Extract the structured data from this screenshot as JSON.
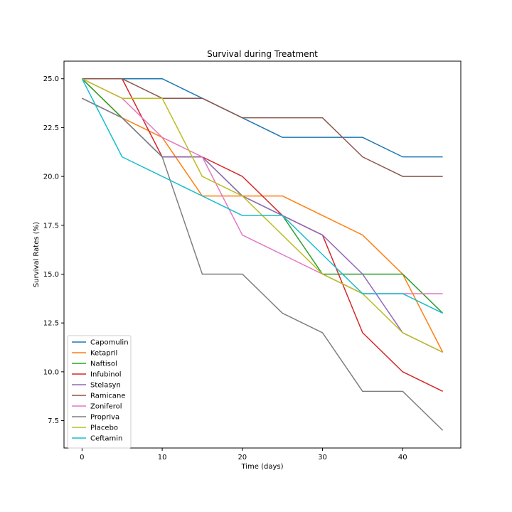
{
  "chart_data": {
    "type": "line",
    "title": "Survival during Treatment",
    "xlabel": "Time (days)",
    "ylabel": "Survival Rates (%)",
    "xlim": [
      -2.25,
      47.25
    ],
    "ylim": [
      6.1,
      25.9
    ],
    "xticks": [
      0,
      10,
      20,
      30,
      40
    ],
    "yticks": [
      7.5,
      10.0,
      12.5,
      15.0,
      17.5,
      20.0,
      22.5,
      25.0
    ],
    "grid": false,
    "legend_position": "lower-left",
    "x": [
      0,
      5,
      10,
      15,
      20,
      25,
      30,
      35,
      40,
      45
    ],
    "series": [
      {
        "name": "Capomulin",
        "color": "#1f77b4",
        "values": [
          25,
          25,
          25,
          24,
          23,
          22,
          22,
          22,
          21,
          21
        ]
      },
      {
        "name": "Ketapril",
        "color": "#ff7f0e",
        "values": [
          25,
          23,
          22,
          19,
          19,
          19,
          18,
          17,
          15,
          11
        ]
      },
      {
        "name": "Naftisol",
        "color": "#2ca02c",
        "values": [
          25,
          23,
          21,
          21,
          19,
          18,
          15,
          15,
          15,
          13
        ]
      },
      {
        "name": "Infubinol",
        "color": "#d62728",
        "values": [
          25,
          25,
          21,
          21,
          20,
          18,
          17,
          12,
          10,
          9
        ]
      },
      {
        "name": "Stelasyn",
        "color": "#9467bd",
        "values": [
          24,
          23,
          21,
          21,
          19,
          18,
          17,
          15,
          12,
          11
        ]
      },
      {
        "name": "Ramicane",
        "color": "#8c564b",
        "values": [
          25,
          25,
          24,
          24,
          23,
          23,
          23,
          21,
          20,
          20
        ]
      },
      {
        "name": "Zoniferol",
        "color": "#e377c2",
        "values": [
          25,
          24,
          22,
          21,
          17,
          16,
          15,
          14,
          14,
          14
        ]
      },
      {
        "name": "Propriva",
        "color": "#7f7f7f",
        "values": [
          24,
          23,
          21,
          15,
          15,
          13,
          12,
          9,
          9,
          7
        ]
      },
      {
        "name": "Placebo",
        "color": "#bcbd22",
        "values": [
          25,
          24,
          24,
          20,
          19,
          17,
          15,
          14,
          12,
          11
        ]
      },
      {
        "name": "Ceftamin",
        "color": "#17becf",
        "values": [
          25,
          21,
          20,
          19,
          18,
          18,
          16,
          14,
          14,
          13
        ]
      }
    ]
  }
}
